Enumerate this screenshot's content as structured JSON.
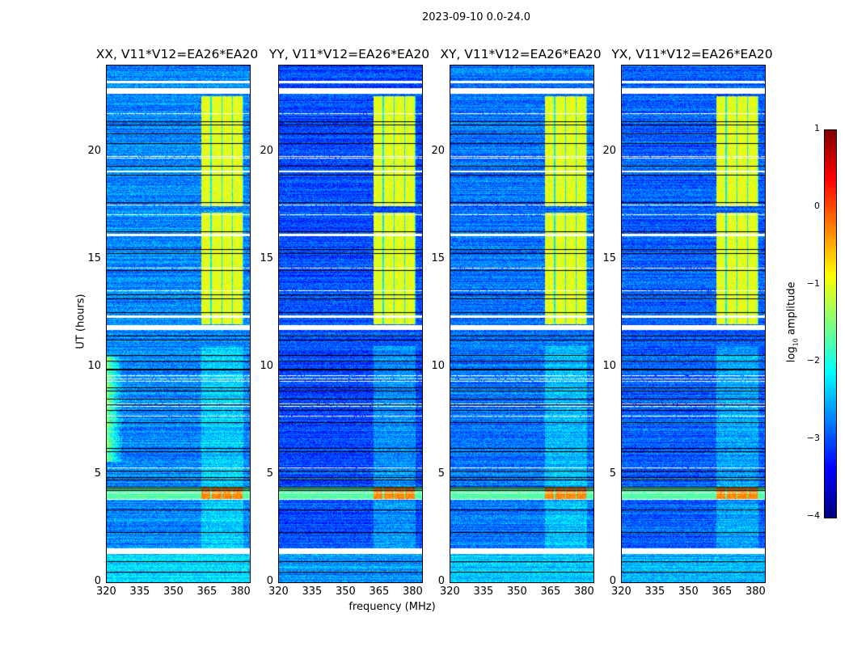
{
  "chart_data": {
    "type": "heatmap",
    "title": "2023-09-10 0.0-24.0",
    "panels": [
      {
        "title": "XX, V11*V12=EA26*EA20",
        "key": "XX",
        "baseline": -2.7,
        "rfi_low_freq": true
      },
      {
        "title": "YY, V11*V12=EA26*EA20",
        "key": "YY",
        "baseline": -3.0,
        "rfi_low_freq": false
      },
      {
        "title": "XY, V11*V12=EA26*EA20",
        "key": "XY",
        "baseline": -2.8,
        "rfi_low_freq": false
      },
      {
        "title": "YX, V11*V12=EA26*EA20",
        "key": "YX",
        "baseline": -2.9,
        "rfi_low_freq": false
      }
    ],
    "xlabel": "frequency (MHz)",
    "ylabel": "UT (hours)",
    "xlim": [
      320,
      384
    ],
    "ylim": [
      0,
      24
    ],
    "xticks": [
      "320",
      "335",
      "350",
      "365",
      "380"
    ],
    "xtick_values": [
      320,
      335,
      350,
      365,
      380
    ],
    "yticks": [
      "0",
      "5",
      "10",
      "15",
      "20"
    ],
    "ytick_values": [
      0,
      5,
      10,
      15,
      20
    ],
    "colorbar": {
      "label_prefix": "log",
      "label_sub": "10",
      "label_suffix": " amplitude",
      "colormap": "jet",
      "range": [
        -4,
        1
      ],
      "ticks": [
        "1",
        "0",
        "−1",
        "−2",
        "−3",
        "−4"
      ],
      "tick_values": [
        1,
        0,
        -1,
        -2,
        -3,
        -4
      ]
    },
    "features": {
      "bright_band_MHz": [
        362,
        381
      ],
      "bright_band_hours": [
        [
          12.0,
          17.2
        ],
        [
          17.5,
          22.6
        ]
      ],
      "bright_band_log_amp": -1.0,
      "strong_rfi_hours": [
        3.85,
        4.4
      ],
      "strong_rfi_log_amp": -0.3,
      "flagged_hours": [
        [
          1.35,
          1.6
        ],
        [
          11.75,
          11.95
        ],
        [
          22.7,
          22.95
        ],
        [
          12.3,
          12.4
        ],
        [
          16.1,
          16.2
        ],
        [
          19.05,
          19.15
        ],
        [
          23.2,
          23.3
        ]
      ]
    }
  }
}
